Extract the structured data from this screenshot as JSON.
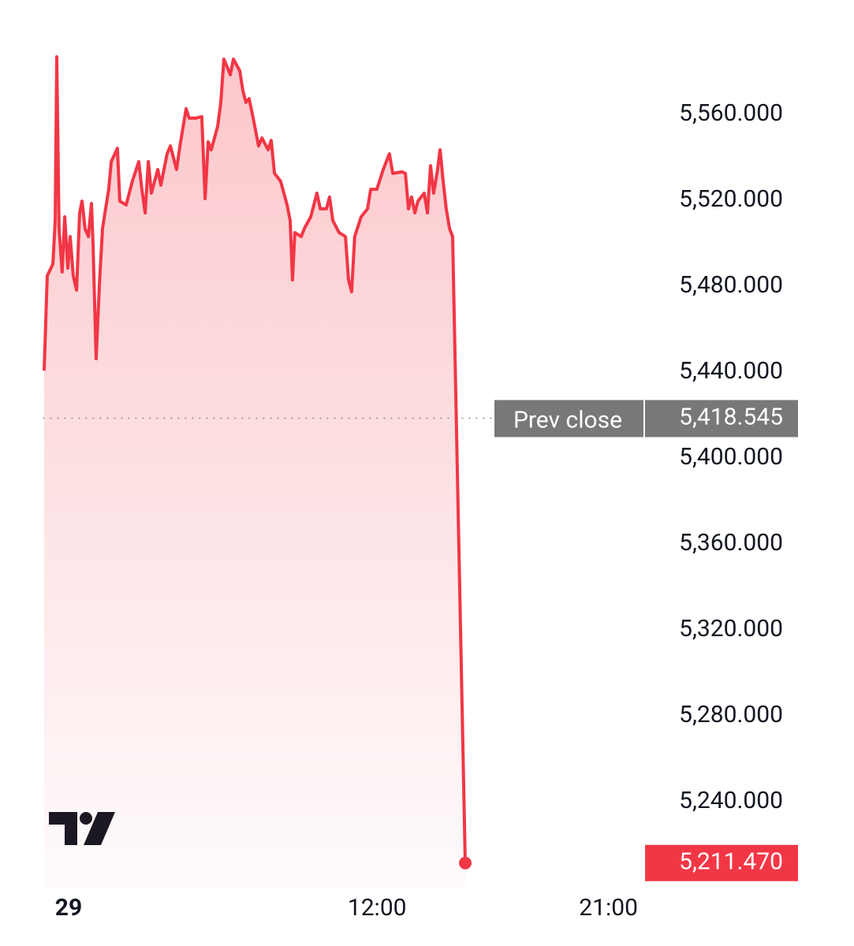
{
  "chart_data": {
    "type": "line",
    "x": [
      -0.95,
      -0.83,
      -0.61,
      -0.52,
      -0.46,
      -0.37,
      -0.25,
      -0.15,
      -0.03,
      0.06,
      0.18,
      0.31,
      0.43,
      0.52,
      0.64,
      0.77,
      0.89,
      0.95,
      1.07,
      1.2,
      1.32,
      1.44,
      1.56,
      1.66,
      1.9,
      1.99,
      2.24,
      2.48,
      2.73,
      2.85,
      2.98,
      3.1,
      3.22,
      3.47,
      3.59,
      3.83,
      3.96,
      4.2,
      4.33,
      4.57,
      4.69,
      4.94,
      5.18,
      5.31,
      5.43,
      5.55,
      5.8,
      5.92,
      6.04,
      6.17,
      6.29,
      6.41,
      6.66,
      6.78,
      6.9,
      7.02,
      7.15,
      7.39,
      7.52,
      7.76,
      7.88,
      8.01,
      8.25,
      8.5,
      8.62,
      8.71,
      8.8,
      9.05,
      9.17,
      9.42,
      9.66,
      9.79,
      10.03,
      10.15,
      10.28,
      10.52,
      10.77,
      10.89,
      11.01,
      11.13,
      11.38,
      11.63,
      11.75,
      11.99,
      12.24,
      12.48,
      12.61,
      12.98,
      13.1,
      13.22,
      13.34,
      13.47,
      13.59,
      13.83,
      13.96,
      14.08,
      14.2,
      14.33,
      14.45,
      14.57,
      14.69,
      14.82,
      14.94,
      15.43
    ],
    "series": [
      {
        "color": "#f23645",
        "values": [
          5440.7,
          5484.8,
          5490.3,
          5510.5,
          5586.8,
          5506.8,
          5486.6,
          5512.3,
          5488.4,
          5503.1,
          5484.8,
          5478.2,
          5514.1,
          5519.6,
          5506.8,
          5503.1,
          5518.5,
          5499.4,
          5446.2,
          5481.1,
          5506.8,
          5516,
          5525.1,
          5538,
          5544.2,
          5519.6,
          5517.8,
          5528.8,
          5538,
          5525.1,
          5514.1,
          5538,
          5523.3,
          5534.3,
          5527,
          5541.6,
          5545.3,
          5534.3,
          5545.3,
          5562.6,
          5558.2,
          5558.2,
          5558.9,
          5520.7,
          5547.2,
          5543.5,
          5554.5,
          5565.5,
          5585.7,
          5582,
          5578.4,
          5585.7,
          5580.2,
          5571,
          5565.5,
          5567.3,
          5560,
          5545.3,
          5549,
          5543.5,
          5547.9,
          5532.5,
          5528.8,
          5517.8,
          5510.5,
          5482.9,
          5504.9,
          5503.1,
          5506.8,
          5512.3,
          5523.3,
          5516,
          5516,
          5521.5,
          5510.5,
          5504.9,
          5503.1,
          5482.9,
          5477.4,
          5503.1,
          5512.3,
          5516,
          5525.1,
          5525.1,
          5534.3,
          5541.6,
          5532.5,
          5533.2,
          5532.5,
          5516,
          5521.5,
          5514.1,
          5519.6,
          5523.3,
          5514.1,
          5536.1,
          5523.3,
          5532.5,
          5543.5,
          5528.8,
          5516,
          5506.8,
          5503.1,
          5211.47
        ],
        "last_value_label": "5,211.470"
      }
    ],
    "prev_close": {
      "label": "Prev close",
      "value": 5418.545,
      "value_label": "5,418.545"
    },
    "xlim": [
      -1,
      30
    ],
    "xticks": [
      {
        "value": 0,
        "label": "29"
      },
      {
        "value": 12,
        "label": "12:00"
      },
      {
        "value": 21,
        "label": "21:00"
      }
    ],
    "ylim": [
      5200,
      5600
    ],
    "yticks": [
      {
        "value": 5240,
        "label": "5,240.000"
      },
      {
        "value": 5280,
        "label": "5,280.000"
      },
      {
        "value": 5320,
        "label": "5,320.000"
      },
      {
        "value": 5360,
        "label": "5,360.000"
      },
      {
        "value": 5400,
        "label": "5,400.000"
      },
      {
        "value": 5440,
        "label": "5,440.000"
      },
      {
        "value": 5480,
        "label": "5,480.000"
      },
      {
        "value": 5520,
        "label": "5,520.000"
      },
      {
        "value": 5560,
        "label": "5,560.000"
      }
    ],
    "grid": false
  }
}
